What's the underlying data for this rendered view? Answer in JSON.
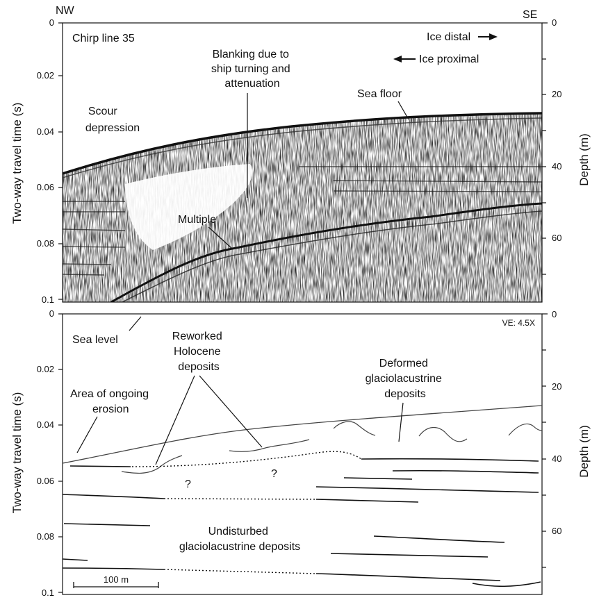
{
  "corner_labels": {
    "nw": "NW",
    "se": "SE"
  },
  "axes": {
    "y_left_title": "Two-way travel time (s)",
    "y_right_title": "Depth (m)",
    "time_ticks": [
      "0",
      "0.02",
      "0.04",
      "0.06",
      "0.08",
      "0.1"
    ],
    "depth_ticks": [
      "0",
      "20",
      "40",
      "60"
    ]
  },
  "top_panel": {
    "title": "Chirp line 35",
    "arrow_distal": "Ice distal",
    "arrow_proximal": "Ice proximal",
    "blanking_lines": [
      "Blanking due to",
      "ship turning and",
      "attenuation"
    ],
    "sea_floor": "Sea floor",
    "scour_lines": [
      "Scour",
      "depression"
    ],
    "multiple": "Multiple"
  },
  "bottom_panel": {
    "ve": "VE: 4.5X",
    "sea_level": "Sea level",
    "reworked_lines": [
      "Reworked",
      "Holocene",
      "deposits"
    ],
    "deformed_lines": [
      "Deformed",
      "glaciolacustrine",
      "deposits"
    ],
    "erosion_lines": [
      "Area of ongoing",
      "erosion"
    ],
    "undisturbed_lines": [
      "Undisturbed",
      "glaciolacustrine deposits"
    ],
    "question_mark": "?",
    "scale_bar": "100 m"
  }
}
